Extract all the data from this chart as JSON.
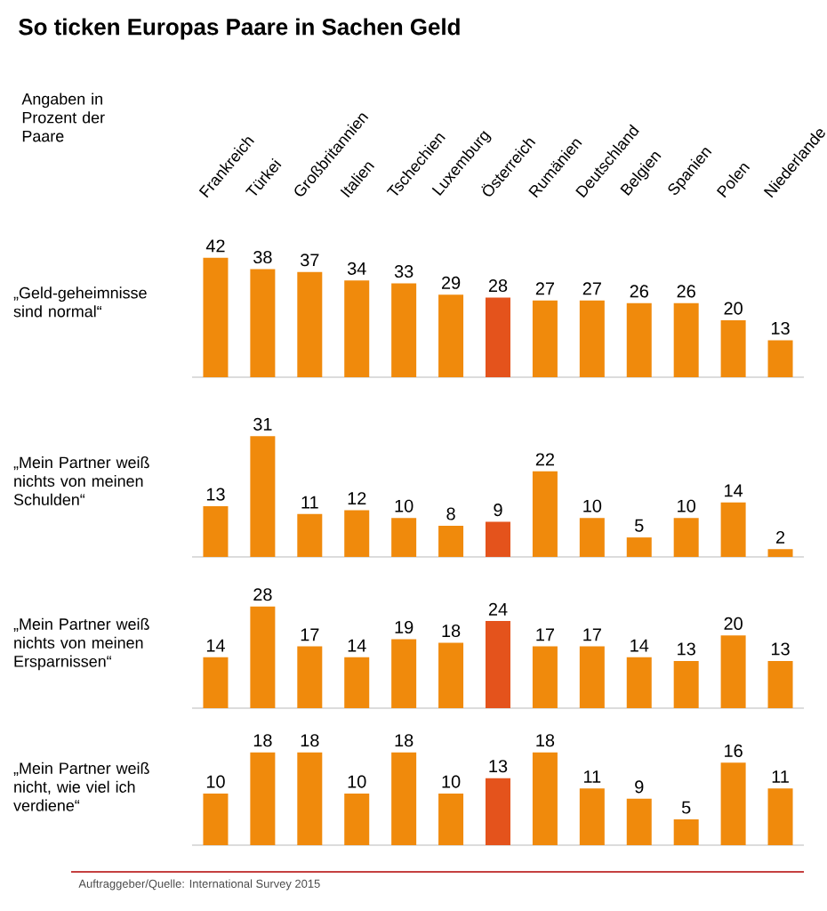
{
  "chart_data": [
    {
      "type": "bar",
      "title": "So ticken Europas Paare in Sachen Geld",
      "subtitle": "Angaben in Prozent der Paare",
      "ylabel": "„Geld-geheimnisse sind normal“",
      "categories": [
        "Frankreich",
        "Türkei",
        "Großbritannien",
        "Italien",
        "Tschechien",
        "Luxemburg",
        "Österreich",
        "Rumänien",
        "Deutschland",
        "Belgien",
        "Spanien",
        "Polen",
        "Niederlande"
      ],
      "values": [
        42,
        38,
        37,
        34,
        33,
        29,
        28,
        27,
        27,
        26,
        26,
        20,
        13
      ],
      "colors": [
        "#f08a0c",
        "#f08a0c",
        "#f08a0c",
        "#f08a0c",
        "#f08a0c",
        "#f08a0c",
        "#e4531c",
        "#f08a0c",
        "#f08a0c",
        "#f08a0c",
        "#f08a0c",
        "#f08a0c",
        "#f08a0c"
      ],
      "data_labels": true,
      "tick_labels": "x"
    },
    {
      "type": "bar",
      "ylabel": "„Mein Partner weiß nichts von meinen Schulden“",
      "categories": [
        null,
        null,
        null,
        null,
        null,
        null,
        null,
        null,
        null,
        null,
        null,
        null,
        null
      ],
      "values": [
        13,
        31,
        11,
        12,
        10,
        8,
        9,
        22,
        10,
        5,
        10,
        14,
        2
      ],
      "colors": [
        "#f08a0c",
        "#f08a0c",
        "#f08a0c",
        "#f08a0c",
        "#f08a0c",
        "#f08a0c",
        "#e4531c",
        "#f08a0c",
        "#f08a0c",
        "#f08a0c",
        "#f08a0c",
        "#f08a0c",
        "#f08a0c"
      ],
      "data_labels": true,
      "tick_labels": false
    },
    {
      "type": "bar",
      "ylabel": "„Mein Partner weiß nichts von meinen Ersparnissen“",
      "categories": [
        null,
        null,
        null,
        null,
        null,
        null,
        null,
        null,
        null,
        null,
        null,
        null,
        null
      ],
      "values": [
        14,
        28,
        17,
        14,
        19,
        18,
        24,
        17,
        17,
        14,
        13,
        20,
        13
      ],
      "colors": [
        "#f08a0c",
        "#f08a0c",
        "#f08a0c",
        "#f08a0c",
        "#f08a0c",
        "#f08a0c",
        "#e4531c",
        "#f08a0c",
        "#f08a0c",
        "#f08a0c",
        "#f08a0c",
        "#f08a0c",
        "#f08a0c"
      ],
      "data_labels": true,
      "tick_labels": false
    },
    {
      "type": "bar",
      "ylabel": "„Mein Partner weiß nicht, wie viel ich verdiene“",
      "categories": [
        null,
        null,
        null,
        null,
        null,
        null,
        null,
        null,
        null,
        null,
        null,
        null,
        null
      ],
      "values": [
        10,
        18,
        18,
        10,
        18,
        10,
        13,
        18,
        11,
        9,
        5,
        16,
        11
      ],
      "colors": [
        "#f08a0c",
        "#f08a0c",
        "#f08a0c",
        "#f08a0c",
        "#f08a0c",
        "#f08a0c",
        "#e4531c",
        "#f08a0c",
        "#f08a0c",
        "#f08a0c",
        "#f08a0c",
        "#f08a0c",
        "#f08a0c"
      ],
      "data_labels": true,
      "tick_labels": false,
      "annotations": [
        "Auftraggeber/Quelle: International Survey 2015"
      ]
    }
  ]
}
